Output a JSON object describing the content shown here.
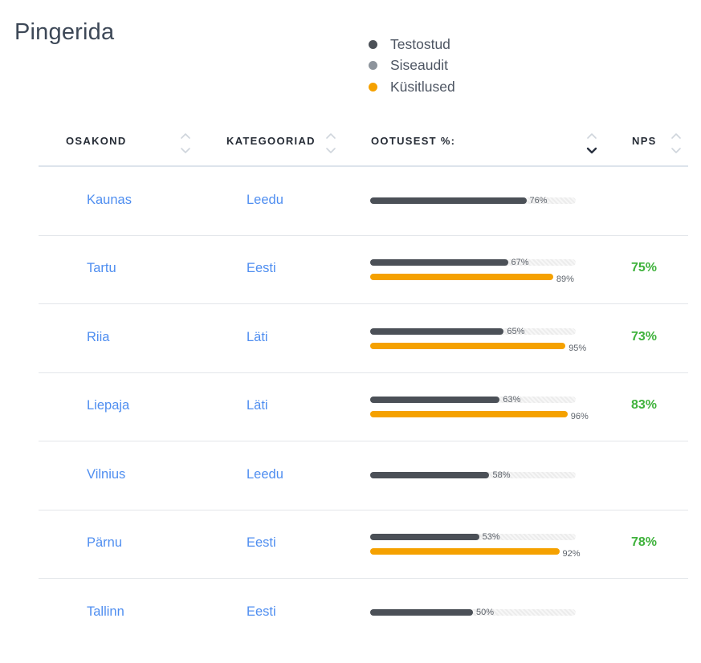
{
  "title": "Pingerida",
  "legend": [
    {
      "label": "Testostud",
      "color": "#4b5057"
    },
    {
      "label": "Siseaudit",
      "color": "#8d949c"
    },
    {
      "label": "Küsitlused",
      "color": "#f5a100"
    }
  ],
  "table": {
    "columns": [
      {
        "label": "OSAKOND",
        "sort": "none"
      },
      {
        "label": "KATEGOORIAD",
        "sort": "none"
      },
      {
        "label": "OOTUSEST %:",
        "sort": "desc"
      },
      {
        "label": "NPS",
        "sort": "none"
      }
    ],
    "rows": [
      {
        "unit": "Kaunas",
        "category": "Leedu",
        "tests": 76,
        "tests_label": "76%",
        "survey": null,
        "survey_label": "",
        "nps": ""
      },
      {
        "unit": "Tartu",
        "category": "Eesti",
        "tests": 67,
        "tests_label": "67%",
        "survey": 89,
        "survey_label": "89%",
        "nps": "75%"
      },
      {
        "unit": "Riia",
        "category": "Läti",
        "tests": 65,
        "tests_label": "65%",
        "survey": 95,
        "survey_label": "95%",
        "nps": "73%"
      },
      {
        "unit": "Liepaja",
        "category": "Läti",
        "tests": 63,
        "tests_label": "63%",
        "survey": 96,
        "survey_label": "96%",
        "nps": "83%"
      },
      {
        "unit": "Vilnius",
        "category": "Leedu",
        "tests": 58,
        "tests_label": "58%",
        "survey": null,
        "survey_label": "",
        "nps": ""
      },
      {
        "unit": "Pärnu",
        "category": "Eesti",
        "tests": 53,
        "tests_label": "53%",
        "survey": 92,
        "survey_label": "92%",
        "nps": "78%"
      },
      {
        "unit": "Tallinn",
        "category": "Eesti",
        "tests": 50,
        "tests_label": "50%",
        "survey": null,
        "survey_label": "",
        "nps": ""
      }
    ]
  }
}
